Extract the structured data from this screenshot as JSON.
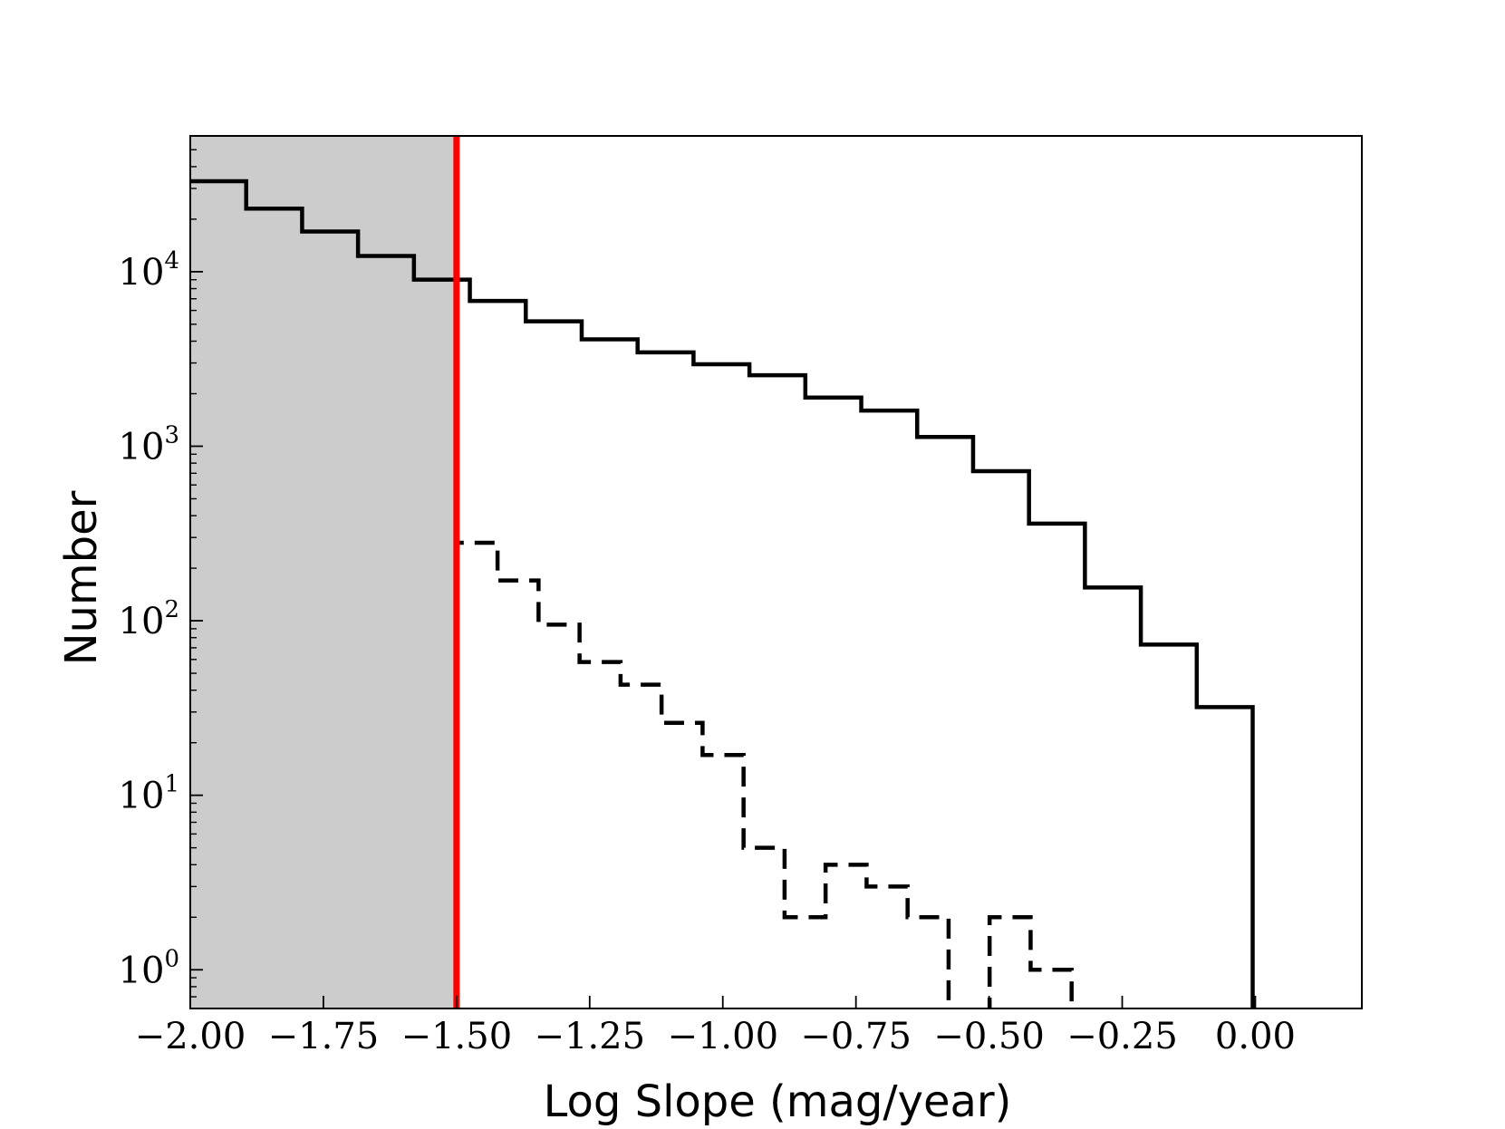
{
  "chart_data": {
    "type": "histogram",
    "xlabel": "Log Slope (mag/year)",
    "ylabel": "Number",
    "xlim": [
      -2.0,
      0.2
    ],
    "ylim": [
      0.6,
      60000
    ],
    "yscale": "log",
    "grid": false,
    "x_ticks": [
      -2.0,
      -1.75,
      -1.5,
      -1.25,
      -1.0,
      -0.75,
      -0.5,
      -0.25,
      0.0
    ],
    "x_tick_labels": [
      "−2.00",
      "−1.75",
      "−1.50",
      "−1.25",
      "−1.00",
      "−0.75",
      "−0.50",
      "−0.25",
      "0.00"
    ],
    "y_ticks": [
      1,
      10,
      100,
      1000,
      10000
    ],
    "y_tick_labels": [
      {
        "base": "10",
        "exp": "0"
      },
      {
        "base": "10",
        "exp": "1"
      },
      {
        "base": "10",
        "exp": "2"
      },
      {
        "base": "10",
        "exp": "3"
      },
      {
        "base": "10",
        "exp": "4"
      }
    ],
    "shaded_region": {
      "x0": -2.0,
      "x1": -1.5,
      "color": "#cccccc"
    },
    "threshold_line": {
      "x": -1.5,
      "color": "#ff0000"
    },
    "series": [
      {
        "style": "solid",
        "color": "#000000",
        "edges": [
          -2.0,
          -1.895,
          -1.79,
          -1.685,
          -1.58,
          -1.475,
          -1.37,
          -1.265,
          -1.16,
          -1.055,
          -0.95,
          -0.845,
          -0.74,
          -0.635,
          -0.53,
          -0.425,
          -0.32,
          -0.215,
          -0.11,
          -0.005
        ],
        "counts": [
          33000,
          23000,
          17000,
          12300,
          9000,
          6800,
          5200,
          4100,
          3450,
          2950,
          2550,
          1900,
          1600,
          1130,
          720,
          360,
          155,
          73,
          32
        ]
      },
      {
        "style": "dashed",
        "color": "#000000",
        "edges": [
          -1.5,
          -1.423,
          -1.346,
          -1.269,
          -1.192,
          -1.115,
          -1.038,
          -0.961,
          -0.884,
          -0.807,
          -0.73,
          -0.653,
          -0.576,
          -0.499,
          -0.422,
          -0.345
        ],
        "counts": [
          280,
          170,
          95,
          58,
          43,
          26,
          17,
          5,
          2,
          4,
          3,
          2,
          0,
          2,
          1
        ]
      }
    ]
  }
}
